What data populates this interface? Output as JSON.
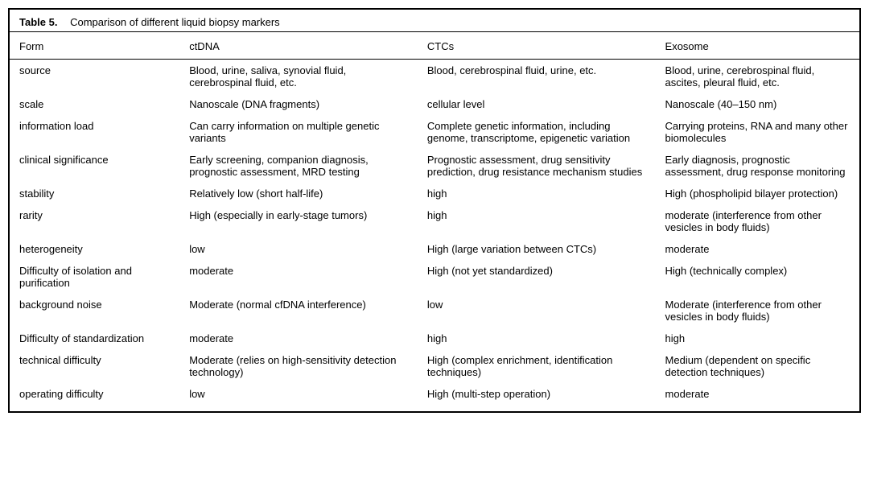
{
  "table": {
    "title_strong": "Table 5.",
    "title_caption": "Comparison of different liquid biopsy markers",
    "columns": [
      "Form",
      "ctDNA",
      "CTCs",
      "Exosome"
    ],
    "rows": [
      {
        "form": "source",
        "ctdna": "Blood, urine, saliva, synovial fluid, cerebrospinal fluid, etc.",
        "ctcs": "Blood, cerebrospinal fluid, urine, etc.",
        "exo": "Blood, urine, cerebrospinal fluid, ascites, pleural fluid, etc."
      },
      {
        "form": "scale",
        "ctdna": "Nanoscale (DNA fragments)",
        "ctcs": "cellular level",
        "exo": "Nanoscale (40–150 nm)"
      },
      {
        "form": "information load",
        "ctdna": "Can carry information on multiple genetic variants",
        "ctcs": "Complete genetic information, including genome, transcriptome, epigenetic variation",
        "exo": "Carrying proteins, RNA and many other biomolecules"
      },
      {
        "form": "clinical significance",
        "ctdna": "Early screening, companion diagnosis, prognostic assessment, MRD testing",
        "ctcs": "Prognostic assessment, drug sensitivity prediction, drug resistance mechanism studies",
        "exo": "Early diagnosis, prognostic assessment, drug response monitoring"
      },
      {
        "form": "stability",
        "ctdna": "Relatively low (short half-life)",
        "ctcs": "high",
        "exo": "High (phospholipid bilayer protection)"
      },
      {
        "form": "rarity",
        "ctdna": "High (especially in early-stage tumors)",
        "ctcs": "high",
        "exo": "moderate (interference from other vesicles in body fluids)"
      },
      {
        "form": "heterogeneity",
        "ctdna": "low",
        "ctcs": "High (large variation between CTCs)",
        "exo": "moderate"
      },
      {
        "form": "Difficulty of isolation and purification",
        "ctdna": "moderate",
        "ctcs": "High (not yet standardized)",
        "exo": "High (technically complex)"
      },
      {
        "form": "background noise",
        "ctdna": "Moderate (normal cfDNA interference)",
        "ctcs": "low",
        "exo": "Moderate (interference from other vesicles in body fluids)"
      },
      {
        "form": "Difficulty of standardization",
        "ctdna": "moderate",
        "ctcs": "high",
        "exo": "high"
      },
      {
        "form": "technical difficulty",
        "ctdna": "Moderate (relies on high-sensitivity detection technology)",
        "ctcs": "High (complex enrichment, identification techniques)",
        "exo": "Medium (dependent on specific detection techniques)"
      },
      {
        "form": "operating difficulty",
        "ctdna": "low",
        "ctcs": "High (multi-step operation)",
        "exo": "moderate"
      }
    ]
  },
  "style": {
    "font_family": "Helvetica Neue, Helvetica, Arial, sans-serif",
    "font_size_pt": 10,
    "border_color": "#000000",
    "background_color": "#ffffff",
    "text_color": "#000000"
  }
}
